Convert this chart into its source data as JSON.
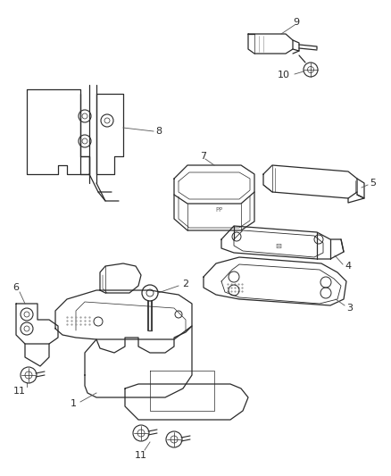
{
  "background_color": "#ffffff",
  "line_color": "#2a2a2a",
  "label_color": "#2a2a2a",
  "figsize": [
    4.38,
    5.33
  ],
  "dpi": 100
}
